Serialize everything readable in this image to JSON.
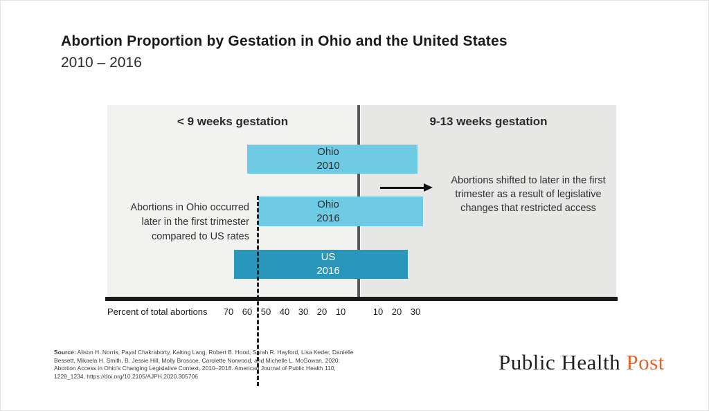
{
  "chart_data": {
    "type": "bar",
    "orientation": "horizontal diverging",
    "title": "Abortion Proportion by Gestation in Ohio and the United States",
    "subtitle": "2010 – 2016",
    "sections": {
      "left_label": "< 9 weeks gestation",
      "right_label": "9-13 weeks gestation"
    },
    "categories": [
      "Ohio 2010",
      "Ohio 2016",
      "US 2016"
    ],
    "category_lines": [
      [
        "Ohio",
        "2010"
      ],
      [
        "Ohio",
        "2016"
      ],
      [
        "US",
        "2016"
      ]
    ],
    "series": [
      {
        "name": "< 9 weeks gestation",
        "values": [
          60,
          54,
          67
        ]
      },
      {
        "name": "9-13 weeks gestation",
        "values": [
          31,
          34,
          26
        ]
      }
    ],
    "units": "percent of total abortions",
    "xlabel": "Percent of total abortions",
    "x_ticks_left": [
      "70",
      "60",
      "50",
      "40",
      "30",
      "20",
      "10"
    ],
    "x_ticks_right": [
      "10",
      "20",
      "30"
    ],
    "dashed_marker_value": 55,
    "bar_colors": {
      "ohio": "#6fcbe4",
      "us": "#2a96b9"
    },
    "legend_position": "none",
    "grid": false,
    "annotations": [
      {
        "id": "left",
        "lines": [
          "Abortions in Ohio occurred",
          "later in the first trimester",
          "compared to US rates"
        ]
      },
      {
        "id": "right",
        "lines": [
          "Abortions shifted to later in the first",
          "trimester as a result of legislative",
          "changes that restricted access"
        ]
      }
    ]
  },
  "footer": {
    "source_label": "Source:",
    "source_lines": [
      " Alison H. Norris, Payal Chakraborty, Kaiting Lang, Robert B. Hood, Sarah R. Hayford, Lisa Keder, Danielle",
      "Bessett, Mikaela H. Smith, B. Jessie Hill, Molly Broscoe, Carolette Norwood, and Michelle L. McGowan, 2020:",
      "Abortion Access in Ohio's Changing Legislative Context, 2010–2018. American Journal of Public Health 110,",
      "1228_1234, https://doi.org/10.2105/AJPH.2020.305706"
    ],
    "logo": {
      "text_dark": "Public Health",
      "text_accent": "Post",
      "accent_color": "#e8622c"
    }
  }
}
